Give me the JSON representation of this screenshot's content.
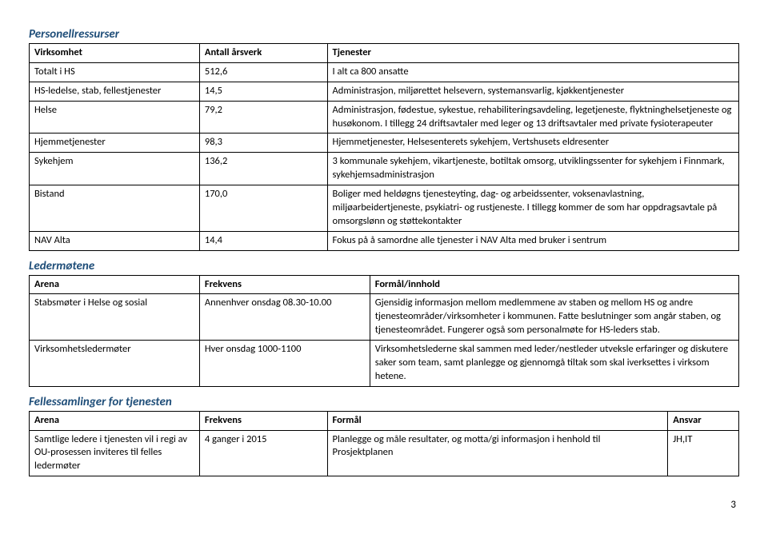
{
  "sections": {
    "personnel": {
      "title": "Personellressurser",
      "headers": [
        "Virksomhet",
        "Antall årsverk",
        "Tjenester"
      ],
      "col_widths": [
        "24%",
        "18%",
        "58%"
      ],
      "rows": [
        [
          "Totalt i HS",
          "512,6",
          "I alt ca 800 ansatte"
        ],
        [
          "HS-ledelse, stab, fellestjenester",
          "14,5",
          "Administrasjon, miljørettet helsevern, systemansvarlig, kjøkkentjenester"
        ],
        [
          "Helse",
          "79,2",
          "Administrasjon, fødestue, sykestue, rehabiliteringsavdeling, legetjeneste, flyktninghelsetjeneste og husøkonom. I tillegg 24 driftsavtaler med leger og 13 driftsavtaler med private fysioterapeuter"
        ],
        [
          "Hjemmetjenester",
          "98,3",
          "Hjemmetjenester, Helsesenterets sykehjem, Vertshusets eldresenter"
        ],
        [
          "Sykehjem",
          "136,2",
          "3 kommunale sykehjem, vikartjeneste, botiltak omsorg, utviklingssenter for sykehjem i Finnmark, sykehjemsadministrasjon"
        ],
        [
          "Bistand",
          "170,0",
          "Boliger med heldøgns tjenesteyting, dag- og arbeidssenter, voksenavlastning, miljøarbeidertjeneste, psykiatri- og rustjeneste. I tillegg kommer de som har oppdragsavtale på omsorgslønn og støttekontakter"
        ],
        [
          "NAV Alta",
          "14,4",
          "Fokus på å samordne alle tjenester i NAV Alta med bruker i sentrum"
        ]
      ]
    },
    "ledermotene": {
      "title": "Ledermøtene",
      "headers": [
        "Arena",
        "Frekvens",
        "Formål/innhold"
      ],
      "col_widths": [
        "24%",
        "24%",
        "52%"
      ],
      "rows": [
        [
          "Stabsmøter i Helse og sosial",
          "Annenhver onsdag 08.30-10.00",
          "Gjensidig informasjon mellom medlemmene av staben og mellom HS og andre tjenesteområder/virksomheter i kommunen. Fatte beslutninger som angår staben, og tjenesteområdet. Fungerer også som personalmøte for HS-leders stab."
        ],
        [
          "Virksomhetsledermøter",
          "Hver onsdag 1000-1100",
          "Virksomhetslederne skal sammen med leder/nestleder utveksle erfaringer og diskutere saker som team, samt planlegge og gjennomgå tiltak som skal iverksettes i virksom hetene."
        ]
      ]
    },
    "felles": {
      "title": "Fellessamlinger for tjenesten",
      "headers": [
        "Arena",
        "Frekvens",
        "Formål",
        "Ansvar"
      ],
      "col_widths": [
        "24%",
        "18%",
        "48%",
        "10%"
      ],
      "rows": [
        [
          "Samtlige ledere i tjenesten vil i regi av OU-prosessen inviteres til felles ledermøter",
          "4 ganger i 2015",
          "Planlegge og måle resultater, og motta/gi informasjon i henhold til Prosjektplanen",
          "JH,IT"
        ]
      ]
    }
  },
  "page_number": "3"
}
